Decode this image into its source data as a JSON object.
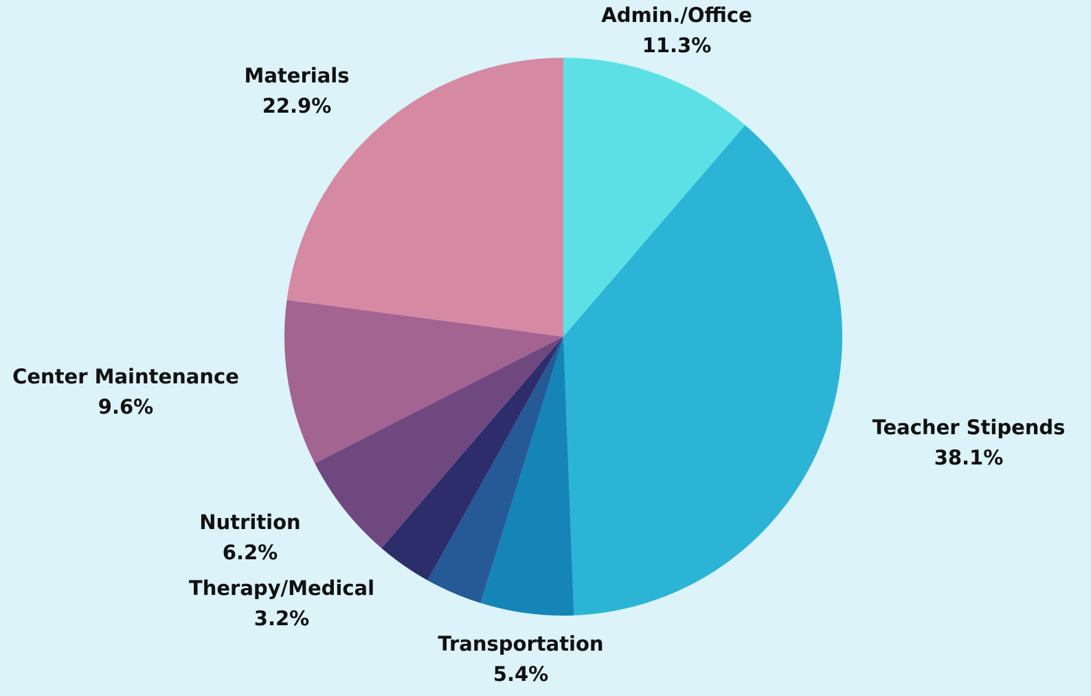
{
  "chart_data": {
    "type": "pie",
    "categories": [
      "Admin./Office",
      "Teacher Stipends",
      "Transportation",
      null,
      "Therapy/Medical",
      "Nutrition",
      "Center Maintenance",
      "Materials"
    ],
    "values": [
      11.3,
      38.1,
      5.4,
      3.3,
      3.2,
      6.2,
      9.6,
      22.9
    ],
    "value_labels": [
      "11.3%",
      "38.1%",
      "5.4%",
      null,
      "3.2%",
      "6.2%",
      "9.6%",
      "22.9%"
    ],
    "colors": [
      "#5ce0e5",
      "#2cb4d6",
      "#1585b8",
      "#255a96",
      "#2e2d6b",
      "#6f4880",
      "#a36491",
      "#d589a3"
    ]
  }
}
